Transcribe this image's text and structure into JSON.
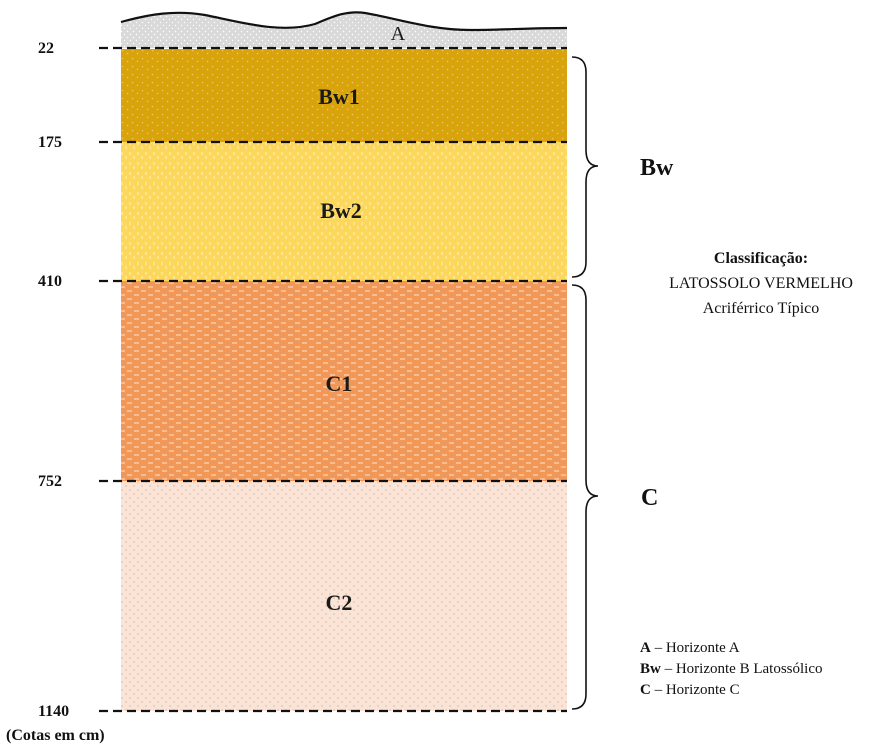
{
  "horizons": {
    "a": {
      "label": "A",
      "color": "#d9d9d9"
    },
    "bw1": {
      "label": "Bw1",
      "color": "#d9a40b"
    },
    "bw2": {
      "label": "Bw2",
      "color": "#fdd75a"
    },
    "c1": {
      "label": "C1",
      "color": "#f19858"
    },
    "c2": {
      "label": "C2",
      "color": "#fbe4d6"
    }
  },
  "depths": [
    "22",
    "175",
    "410",
    "752",
    "1140"
  ],
  "depth_unit_note": "(Cotas em cm)",
  "groups": {
    "bw": "Bw",
    "c": "C"
  },
  "classification": {
    "title": "Classificação:",
    "line1": "LATOSSOLO  VERMELHO",
    "line2": "Acriférrico Típico"
  },
  "legend": [
    {
      "key": "A",
      "text": " – Horizonte A"
    },
    {
      "key": "Bw",
      "text": " – Horizonte B Latossólico"
    },
    {
      "key": "C",
      "text": " – Horizonte C"
    }
  ]
}
